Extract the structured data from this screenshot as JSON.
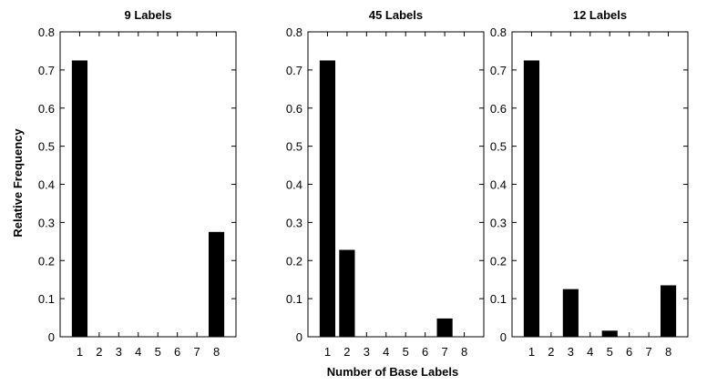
{
  "figure": {
    "ylabel": "Relative Frequency",
    "xlabel": "Number of Base Labels"
  },
  "chart_data": [
    {
      "type": "bar",
      "title": "9 Labels",
      "categories": [
        "1",
        "2",
        "3",
        "4",
        "5",
        "6",
        "7",
        "8"
      ],
      "values": [
        0.725,
        0,
        0,
        0,
        0,
        0,
        0,
        0.275
      ],
      "ylim": [
        0,
        0.8
      ],
      "yticks": [
        "0",
        "0.1",
        "0.2",
        "0.3",
        "0.4",
        "0.5",
        "0.6",
        "0.7",
        "0.8"
      ],
      "grid": false,
      "bar_color": "#000000"
    },
    {
      "type": "bar",
      "title": "45 Labels",
      "categories": [
        "1",
        "2",
        "3",
        "4",
        "5",
        "6",
        "7",
        "8"
      ],
      "values": [
        0.725,
        0.228,
        0,
        0,
        0,
        0,
        0.048,
        0
      ],
      "ylim": [
        0,
        0.8
      ],
      "yticks": [
        "0",
        "0.1",
        "0.2",
        "0.3",
        "0.4",
        "0.5",
        "0.6",
        "0.7",
        "0.8"
      ],
      "grid": false,
      "bar_color": "#000000"
    },
    {
      "type": "bar",
      "title": "12 Labels",
      "categories": [
        "1",
        "2",
        "3",
        "4",
        "5",
        "6",
        "7",
        "8"
      ],
      "values": [
        0.725,
        0,
        0.125,
        0,
        0.016,
        0,
        0,
        0.135
      ],
      "ylim": [
        0,
        0.8
      ],
      "yticks": [
        "0",
        "0.1",
        "0.2",
        "0.3",
        "0.4",
        "0.5",
        "0.6",
        "0.7",
        "0.8"
      ],
      "grid": false,
      "bar_color": "#000000"
    }
  ]
}
